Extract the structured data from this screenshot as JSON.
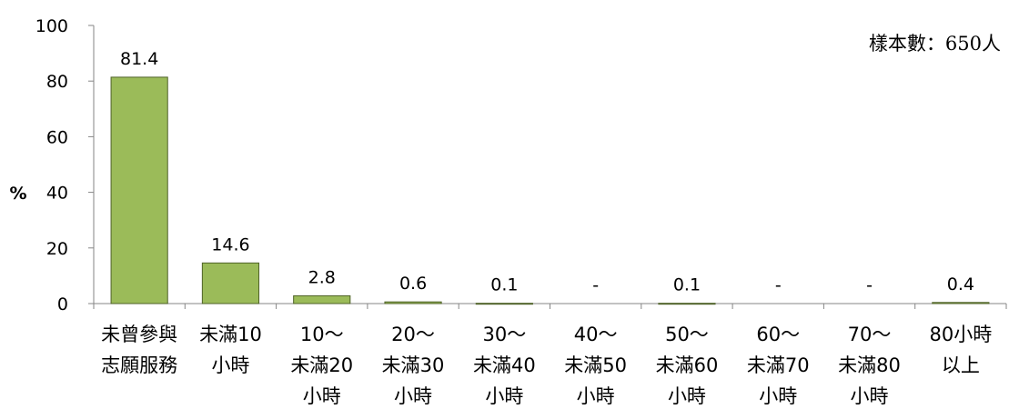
{
  "chart_data": {
    "type": "bar",
    "ylabel": "%",
    "ylim": [
      0,
      100
    ],
    "yticks": [
      "0",
      "20",
      "40",
      "60",
      "80",
      "100"
    ],
    "grid": false,
    "note": "樣本數：650人",
    "bar_color": "#9bbb59",
    "bar_edge_color": "#4f6228",
    "categories": [
      [
        "未曾參與",
        "志願服務"
      ],
      [
        "未滿10",
        "小時"
      ],
      [
        "10～",
        "未滿20",
        "小時"
      ],
      [
        "20～",
        "未滿30",
        "小時"
      ],
      [
        "30～",
        "未滿40",
        "小時"
      ],
      [
        "40～",
        "未滿50",
        "小時"
      ],
      [
        "50～",
        "未滿60",
        "小時"
      ],
      [
        "60～",
        "未滿70",
        "小時"
      ],
      [
        "70～",
        "未滿80",
        "小時"
      ],
      [
        "80小時",
        "以上"
      ]
    ],
    "values": [
      81.4,
      14.6,
      2.8,
      0.6,
      0.1,
      0,
      0.1,
      0,
      0,
      0.4
    ],
    "data_labels": [
      "81.4",
      "14.6",
      "2.8",
      "0.6",
      "0.1",
      "-",
      "0.1",
      "-",
      "-",
      "0.4"
    ]
  }
}
